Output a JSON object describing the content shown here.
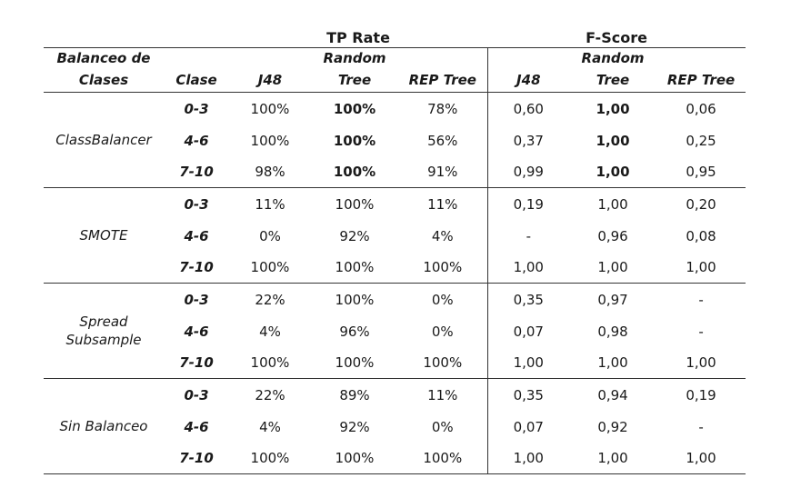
{
  "header": {
    "group_tp": "TP Rate",
    "group_f": "F-Score",
    "col_balanceo_1": "Balanceo de",
    "col_balanceo_2": "Clases",
    "col_clase": "Clase",
    "tp_j48": "J48",
    "tp_random_1": "Random",
    "tp_random_2": "Tree",
    "tp_rep": "REP Tree",
    "f_j48": "J48",
    "f_random_1": "Random",
    "f_random_2": "Tree",
    "f_rep": "REP Tree"
  },
  "groups": [
    {
      "name_1": "ClassBalancer",
      "name_2": "",
      "rows": [
        {
          "clase": "0-3",
          "tp_j48": "100%",
          "tp_rt": "100%",
          "tp_rep": "78%",
          "f_j48": "0,60",
          "f_rt": "1,00",
          "f_rep": "0,06"
        },
        {
          "clase": "4-6",
          "tp_j48": "100%",
          "tp_rt": "100%",
          "tp_rep": "56%",
          "f_j48": "0,37",
          "f_rt": "1,00",
          "f_rep": "0,25"
        },
        {
          "clase": "7-10",
          "tp_j48": "98%",
          "tp_rt": "100%",
          "tp_rep": "91%",
          "f_j48": "0,99",
          "f_rt": "1,00",
          "f_rep": "0,95"
        }
      ]
    },
    {
      "name_1": "SMOTE",
      "name_2": "",
      "rows": [
        {
          "clase": "0-3",
          "tp_j48": "11%",
          "tp_rt": "100%",
          "tp_rep": "11%",
          "f_j48": "0,19",
          "f_rt": "1,00",
          "f_rep": "0,20"
        },
        {
          "clase": "4-6",
          "tp_j48": "0%",
          "tp_rt": "92%",
          "tp_rep": "4%",
          "f_j48": "-",
          "f_rt": "0,96",
          "f_rep": "0,08"
        },
        {
          "clase": "7-10",
          "tp_j48": "100%",
          "tp_rt": "100%",
          "tp_rep": "100%",
          "f_j48": "1,00",
          "f_rt": "1,00",
          "f_rep": "1,00"
        }
      ]
    },
    {
      "name_1": "Spread",
      "name_2": "Subsample",
      "rows": [
        {
          "clase": "0-3",
          "tp_j48": "22%",
          "tp_rt": "100%",
          "tp_rep": "0%",
          "f_j48": "0,35",
          "f_rt": "0,97",
          "f_rep": "-"
        },
        {
          "clase": "4-6",
          "tp_j48": "4%",
          "tp_rt": "96%",
          "tp_rep": "0%",
          "f_j48": "0,07",
          "f_rt": "0,98",
          "f_rep": "-"
        },
        {
          "clase": "7-10",
          "tp_j48": "100%",
          "tp_rt": "100%",
          "tp_rep": "100%",
          "f_j48": "1,00",
          "f_rt": "1,00",
          "f_rep": "1,00"
        }
      ]
    },
    {
      "name_1": "Sin Balanceo",
      "name_2": "",
      "rows": [
        {
          "clase": "0-3",
          "tp_j48": "22%",
          "tp_rt": "89%",
          "tp_rep": "11%",
          "f_j48": "0,35",
          "f_rt": "0,94",
          "f_rep": "0,19"
        },
        {
          "clase": "4-6",
          "tp_j48": "4%",
          "tp_rt": "92%",
          "tp_rep": "0%",
          "f_j48": "0,07",
          "f_rt": "0,92",
          "f_rep": "-"
        },
        {
          "clase": "7-10",
          "tp_j48": "100%",
          "tp_rt": "100%",
          "tp_rep": "100%",
          "f_j48": "1,00",
          "f_rt": "1,00",
          "f_rep": "1,00"
        }
      ]
    }
  ]
}
